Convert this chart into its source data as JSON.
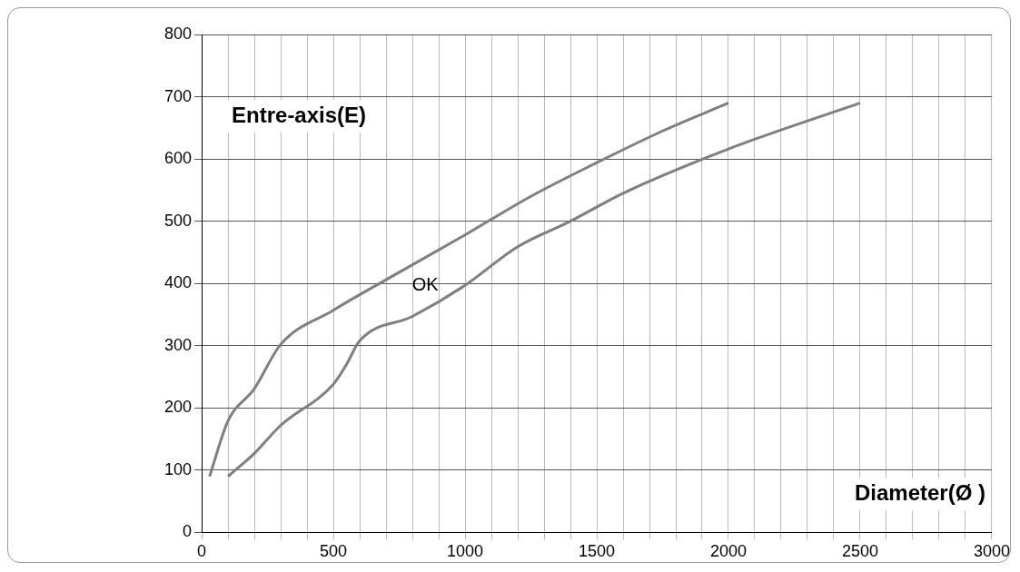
{
  "chart_data": {
    "type": "line",
    "xlabel": "Diameter(Ø )",
    "ylabel": "Entre-axis(E)",
    "annotations": [
      "OK"
    ],
    "series": [
      {
        "color": "#7f7f7f",
        "x": [
          30,
          100,
          200,
          300,
          500,
          700,
          1000,
          1250,
          1500,
          1750,
          2000
        ],
        "values": [
          90,
          179,
          231,
          302,
          357,
          406,
          478,
          540,
          594,
          645,
          690
        ]
      },
      {
        "color": "#7f7f7f",
        "x": [
          100,
          200,
          300,
          500,
          550,
          600,
          800,
          1000,
          1200,
          1400,
          1600,
          2000,
          2500
        ],
        "values": [
          90,
          127,
          172,
          238,
          270,
          308,
          347,
          397,
          459,
          500,
          545,
          616,
          690
        ]
      }
    ],
    "xlim": [
      0,
      3000
    ],
    "xticks": [
      0,
      {
        "value": 100,
        "label": null
      },
      {
        "value": 200,
        "label": null
      },
      {
        "value": 300,
        "label": null
      },
      {
        "value": 400,
        "label": null
      },
      500,
      {
        "value": 600,
        "label": null
      },
      {
        "value": 700,
        "label": null
      },
      {
        "value": 800,
        "label": null
      },
      {
        "value": 900,
        "label": null
      },
      1000,
      {
        "value": 1100,
        "label": null
      },
      {
        "value": 1200,
        "label": null
      },
      {
        "value": 1300,
        "label": null
      },
      {
        "value": 1400,
        "label": null
      },
      1500,
      {
        "value": 1600,
        "label": null
      },
      {
        "value": 1700,
        "label": null
      },
      {
        "value": 1800,
        "label": null
      },
      {
        "value": 1900,
        "label": null
      },
      2000,
      {
        "value": 2100,
        "label": null
      },
      {
        "value": 2200,
        "label": null
      },
      {
        "value": 2300,
        "label": null
      },
      {
        "value": 2400,
        "label": null
      },
      2500,
      {
        "value": 2600,
        "label": null
      },
      {
        "value": 2700,
        "label": null
      },
      {
        "value": 2800,
        "label": null
      },
      {
        "value": 2900,
        "label": null
      },
      3000
    ],
    "ylim": [
      0,
      800
    ],
    "yticks": [
      0,
      100,
      200,
      300,
      400,
      500,
      600,
      700,
      800
    ],
    "grid": true,
    "legend": false,
    "marker": "none",
    "line_style": "solid"
  }
}
